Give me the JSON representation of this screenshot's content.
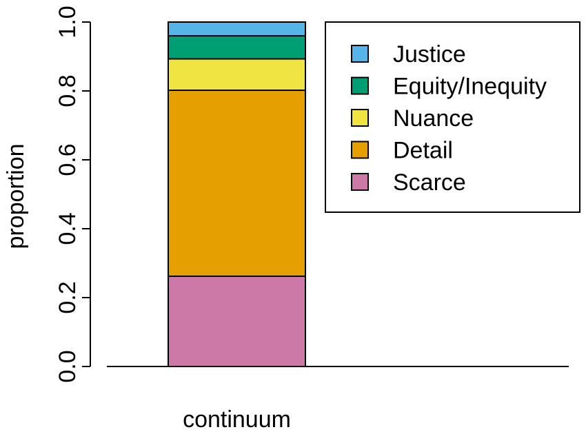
{
  "chart_data": {
    "type": "bar",
    "stacked": true,
    "categories": [
      "continuum"
    ],
    "xlabel": "",
    "ylabel": "proportion",
    "ylim": [
      0,
      1
    ],
    "yticks": [
      "0.0",
      "0.2",
      "0.4",
      "0.6",
      "0.8",
      "1.0"
    ],
    "grid": false,
    "legend_position": "top-right",
    "series": [
      {
        "name": "Scarce",
        "values": [
          0.262
        ],
        "color": "#CC79A7"
      },
      {
        "name": "Detail",
        "values": [
          0.54
        ],
        "color": "#E69F00"
      },
      {
        "name": "Nuance",
        "values": [
          0.091
        ],
        "color": "#F0E442"
      },
      {
        "name": "Equity/Inequity",
        "values": [
          0.067
        ],
        "color": "#009E73"
      },
      {
        "name": "Justice",
        "values": [
          0.04
        ],
        "color": "#56B4E9"
      }
    ],
    "legend_order": [
      "Justice",
      "Equity/Inequity",
      "Nuance",
      "Detail",
      "Scarce"
    ]
  }
}
